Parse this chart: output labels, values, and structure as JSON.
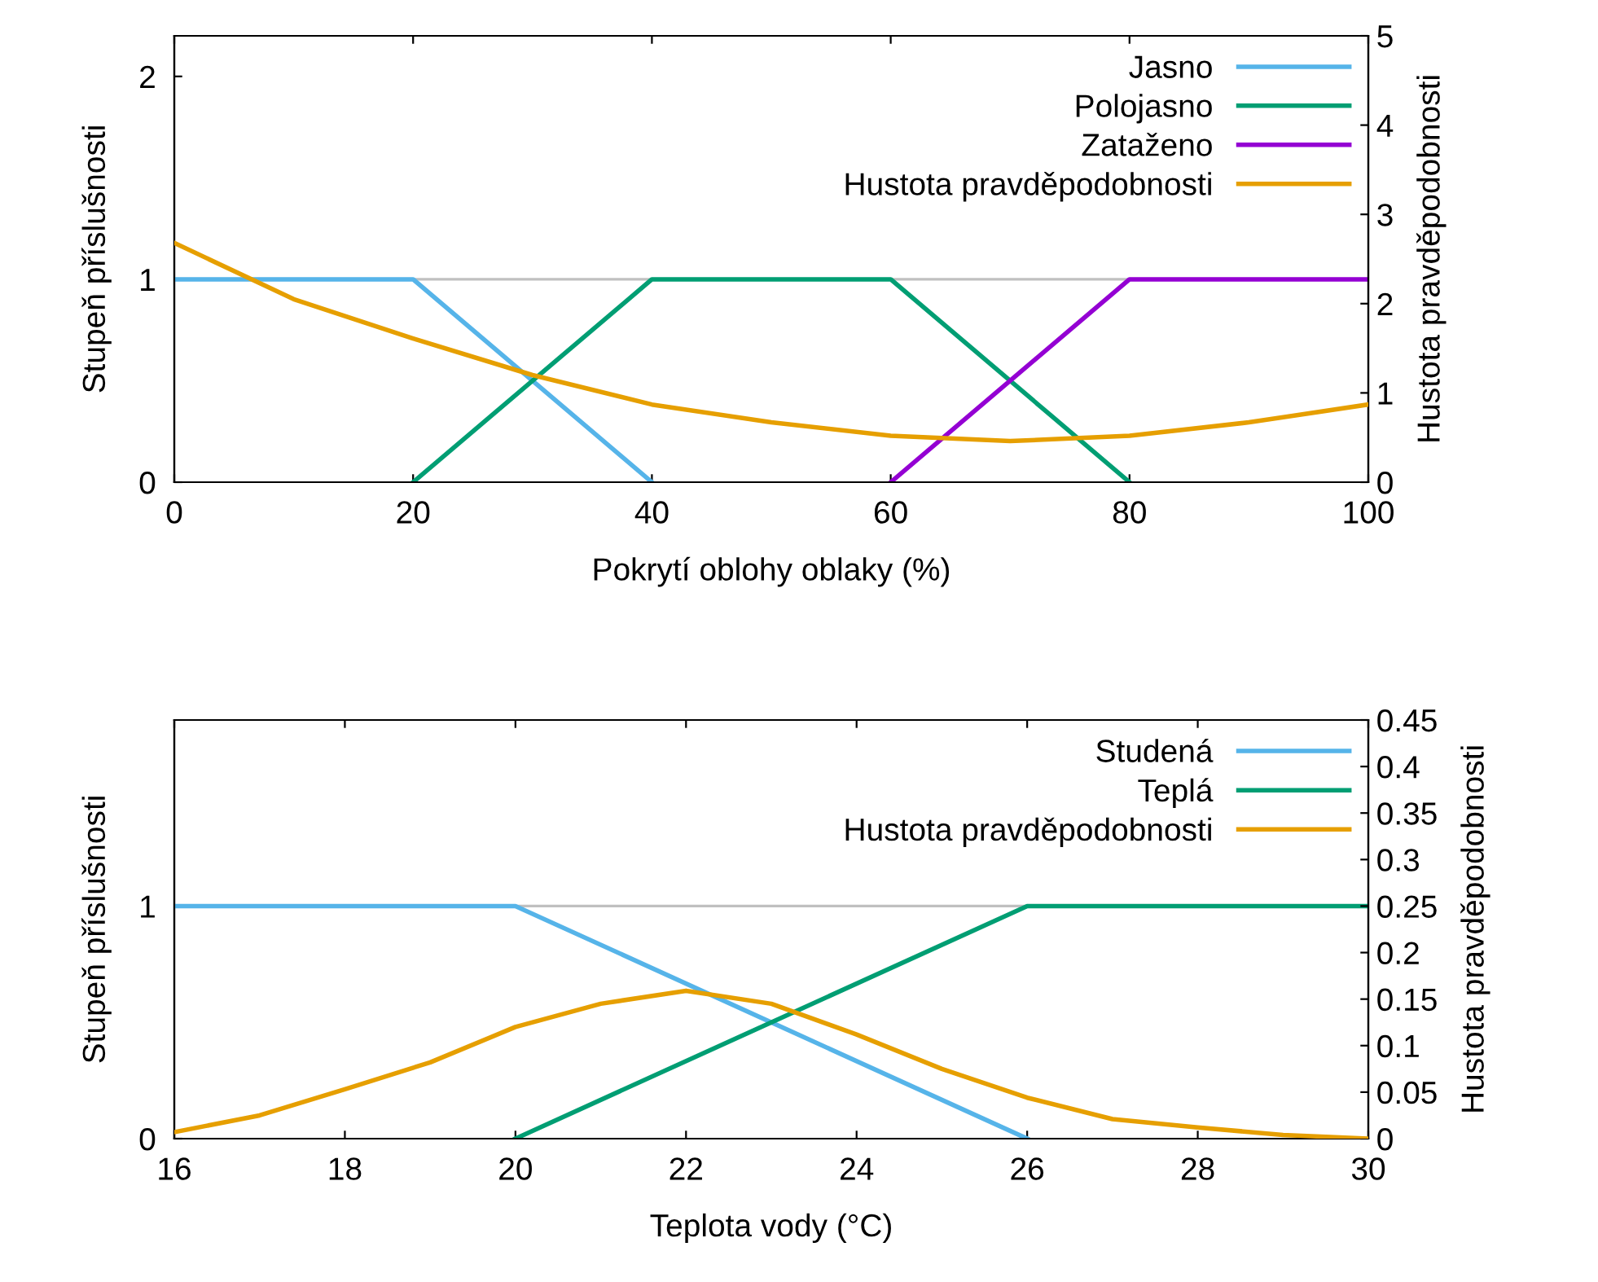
{
  "chart_data": [
    {
      "type": "line",
      "xlabel": "Pokrytí oblohy oblaky (%)",
      "ylabel": "Stupeň příslušnosti",
      "y2label": "Hustota pravděpodobnosti",
      "xlim": [
        0,
        100
      ],
      "xticks": [
        0,
        20,
        40,
        60,
        80,
        100
      ],
      "ylim": [
        0,
        2.2
      ],
      "yticks": [
        0,
        1,
        2
      ],
      "y2lim": [
        0,
        5
      ],
      "y2ticks": [
        0,
        1,
        2,
        3,
        4,
        5
      ],
      "grid": false,
      "legend": "top right",
      "marker": "none",
      "line_style": "solid",
      "ref_lines": [
        {
          "axis": "y",
          "value": 1,
          "color": "#c0c0c0"
        }
      ],
      "series": [
        {
          "name": "Jasno",
          "color": "#56b4e9",
          "x": [
            0,
            20,
            40
          ],
          "values": [
            1,
            1,
            0
          ]
        },
        {
          "name": "Polojasno",
          "color": "#009e73",
          "x": [
            20,
            40,
            60,
            80
          ],
          "values": [
            0,
            1,
            1,
            0
          ]
        },
        {
          "name": "Zataženo",
          "color": "#9400d3",
          "x": [
            60,
            80,
            100
          ],
          "values": [
            0,
            1,
            1
          ]
        },
        {
          "name": "Hustota pravděpodobnosti",
          "color": "#e69f00",
          "axis": "y2",
          "x": [
            0,
            10,
            20,
            30,
            40,
            50,
            60,
            70,
            80,
            90,
            100
          ],
          "values": [
            2.68,
            2.05,
            1.61,
            1.2,
            0.87,
            0.67,
            0.52,
            0.46,
            0.52,
            0.67,
            0.87
          ]
        }
      ]
    },
    {
      "type": "line",
      "xlabel": "Teplota vody (°C)",
      "ylabel": "Stupeň příslušnosti",
      "y2label": "Hustota pravděpodobnosti",
      "xlim": [
        16,
        30
      ],
      "xticks": [
        16,
        18,
        20,
        22,
        24,
        26,
        28,
        30
      ],
      "ylim": [
        0,
        1.8
      ],
      "yticks": [
        0,
        1
      ],
      "y2lim": [
        0,
        0.45
      ],
      "y2ticks": [
        0,
        0.05,
        0.1,
        0.15,
        0.2,
        0.25,
        0.3,
        0.35,
        0.4,
        0.45
      ],
      "grid": false,
      "legend": "top right",
      "marker": "none",
      "line_style": "solid",
      "ref_lines": [
        {
          "axis": "y",
          "value": 1,
          "color": "#c0c0c0"
        }
      ],
      "series": [
        {
          "name": "Studená",
          "color": "#56b4e9",
          "x": [
            16,
            20,
            26
          ],
          "values": [
            1,
            1,
            0
          ]
        },
        {
          "name": "Teplá",
          "color": "#009e73",
          "x": [
            20,
            26,
            30
          ],
          "values": [
            0,
            1,
            1
          ]
        },
        {
          "name": "Hustota pravděpodobnosti",
          "color": "#e69f00",
          "axis": "y2",
          "x": [
            16,
            17,
            18,
            19,
            20,
            21,
            22,
            23,
            24,
            25,
            26,
            27,
            28,
            29,
            30
          ],
          "values": [
            0.007,
            0.025,
            0.053,
            0.082,
            0.12,
            0.145,
            0.159,
            0.145,
            0.112,
            0.075,
            0.044,
            0.021,
            0.012,
            0.004,
            0
          ]
        }
      ]
    }
  ]
}
